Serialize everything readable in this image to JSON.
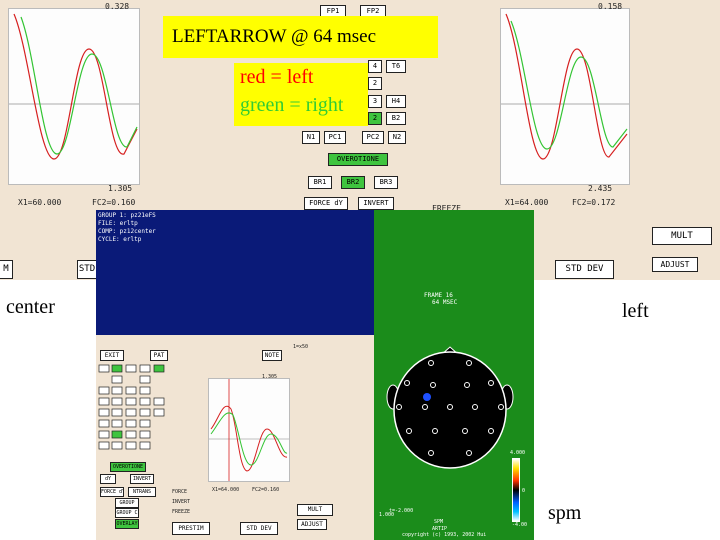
{
  "title_box": {
    "text": "LEFTARROW @ 64 msec",
    "bg": "#ffff00"
  },
  "legend_box": {
    "red_text": "red = left",
    "green_text": "green = right",
    "red": "#ff0000",
    "green": "#33cc33"
  },
  "labels": {
    "center": "center",
    "left": "left",
    "spm": "spm"
  },
  "top_left_plot": {
    "value": "0.328",
    "bottom_value": "1.305",
    "x_readout": "X1=60.000",
    "y_readout": "FC2=0.160"
  },
  "top_right_plot": {
    "value": "0.158",
    "bottom_value": "2.435",
    "x_readout": "X1=64.000",
    "y_readout": "FC2=0.172"
  },
  "top_buttons": {
    "fp1": "FP1",
    "fp2": "FP2",
    "t6": "T6",
    "t4r": "4",
    "r2": "2",
    "r3": "3",
    "h4": "H4",
    "b2a": "2",
    "b2b": "B2",
    "n1": "N1",
    "pc1": "PC1",
    "pc2": "PC2",
    "n2": "N2",
    "overotione": "OVEROTIONE",
    "br1": "BR1",
    "br2": "BR2",
    "br3": "BR3",
    "force_dy": "FORCE dY",
    "invert": "INVERT",
    "freeze": "FREEZE",
    "mult": "MULT",
    "adjust": "ADJUST",
    "std_dev_right": "STD DEV",
    "std_left": "STD",
    "m_left": "M"
  },
  "info_panel": {
    "line1": "GROUP 1: pz21eFS",
    "line2": "FILE: erltp",
    "line3": "COMP: pz12center",
    "line4": "CYCLE: erltp"
  },
  "lower_panel": {
    "exit": "EXIT",
    "pat": "PAT",
    "note": "NOTE",
    "side_readout": "1=x50",
    "plot_value": "1.305",
    "x_readout": "X1=64.000",
    "y_readout": "FC2=0.160",
    "force": "FORCE",
    "invert": "INVERT",
    "freeze": "FREEZE",
    "mult": "MULT",
    "adjust": "ADJUST",
    "prestim": "PRESTIM",
    "std_dev": "STD DEV",
    "grp_a": "GROUP",
    "grp_b": "GROUP C",
    "grp_c": "OVERLAY",
    "dy": "dY",
    "invert2": "INVERT",
    "force2": "FORCE dY",
    "ntrans": "NTRANS",
    "overlay_btn": "OVEROTIONE"
  },
  "head_map": {
    "frame_line1": "FRAME    16",
    "frame_line2": "64 MSEC",
    "scale_max": "4.000",
    "scale_mid": "0",
    "scale_min": "-4.00",
    "left_readout1": "1.000",
    "left_readout2": "t=-2.000",
    "bottom_line1": "SPM",
    "bottom_line2": "ARTIP",
    "bottom_line3": "copyright (c) 1993, 2002 Hui",
    "dot_color": "#ffffff",
    "bg": "#1b8c1b",
    "head_fill": "#000000",
    "marker_color": "#1e50ff"
  },
  "colors": {
    "panel": "#f1e4d3",
    "navy": "#0a1a78",
    "red_trace": "#d62020",
    "green_trace": "#33c433"
  }
}
